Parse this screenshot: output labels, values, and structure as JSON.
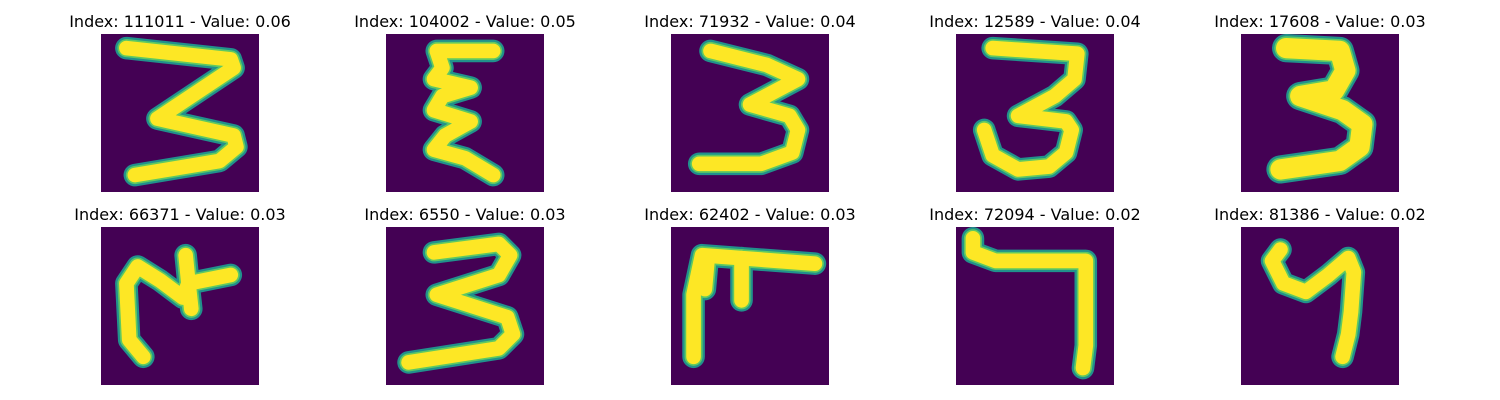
{
  "colors": {
    "background": "#440154",
    "stroke_core": "#fde725",
    "stroke_mid": "#5ec962",
    "stroke_edge": "#21918c"
  },
  "panels": [
    {
      "index": "111011",
      "value": "0.06",
      "glyph": "digit-3-icon"
    },
    {
      "index": "104002",
      "value": "0.05",
      "glyph": "digit-3-wavy-icon"
    },
    {
      "index": "71932",
      "value": "0.04",
      "glyph": "digit-3-icon"
    },
    {
      "index": "12589",
      "value": "0.04",
      "glyph": "digit-3-curled-icon"
    },
    {
      "index": "17608",
      "value": "0.03",
      "glyph": "digit-3-bold-icon"
    },
    {
      "index": "66371",
      "value": "0.03",
      "glyph": "rotated-3-icon"
    },
    {
      "index": "6550",
      "value": "0.03",
      "glyph": "digit-3-icon"
    },
    {
      "index": "62402",
      "value": "0.03",
      "glyph": "rotated-3-angular-icon"
    },
    {
      "index": "72094",
      "value": "0.02",
      "glyph": "digit-7-icon"
    },
    {
      "index": "81386",
      "value": "0.02",
      "glyph": "digit-4-icon"
    }
  ]
}
